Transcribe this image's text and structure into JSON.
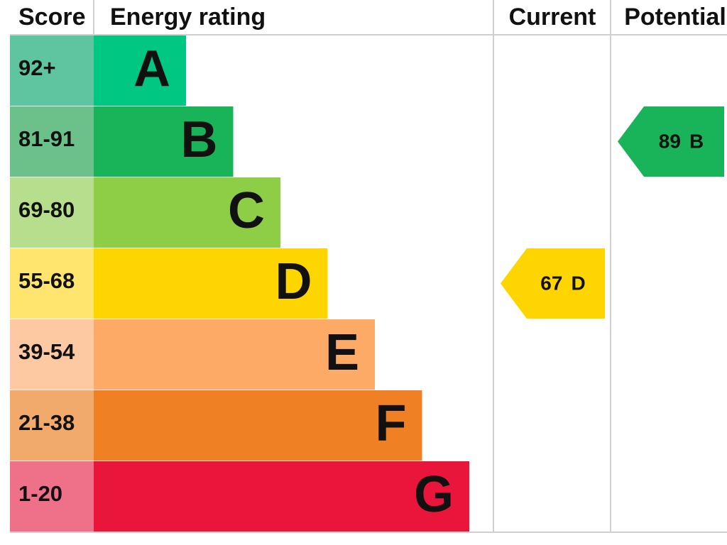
{
  "header": {
    "score": "Score",
    "rating": "Energy rating",
    "current": "Current",
    "potential": "Potential"
  },
  "bands": [
    {
      "range": "92+",
      "letter": "A",
      "color": "#00c781",
      "light": "#5ec5a0"
    },
    {
      "range": "81-91",
      "letter": "B",
      "color": "#19b459",
      "light": "#6cc18b"
    },
    {
      "range": "69-80",
      "letter": "C",
      "color": "#8dce46",
      "light": "#b6de8c"
    },
    {
      "range": "55-68",
      "letter": "D",
      "color": "#ffd500",
      "light": "#ffe46e"
    },
    {
      "range": "39-54",
      "letter": "E",
      "color": "#fcaa65",
      "light": "#fcc9a2"
    },
    {
      "range": "21-38",
      "letter": "F",
      "color": "#ef8023",
      "light": "#f1aa6c"
    },
    {
      "range": "1-20",
      "letter": "G",
      "color": "#e9153b",
      "light": "#ee7189"
    }
  ],
  "current": {
    "score": 67,
    "rating": "D"
  },
  "potential": {
    "score": 89,
    "rating": "B"
  }
}
